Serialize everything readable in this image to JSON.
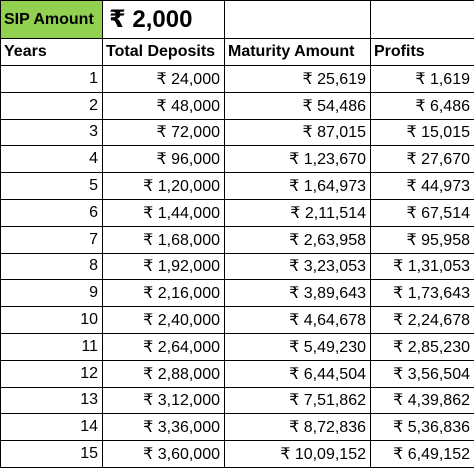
{
  "sip": {
    "label": "SIP Amount",
    "value": "₹ 2,000"
  },
  "headers": [
    "Years",
    "Total Deposits",
    "Maturity Amount",
    "Profits"
  ],
  "rows": [
    [
      "1",
      "₹ 24,000",
      "₹ 25,619",
      "₹ 1,619"
    ],
    [
      "2",
      "₹ 48,000",
      "₹ 54,486",
      "₹ 6,486"
    ],
    [
      "3",
      "₹ 72,000",
      "₹ 87,015",
      "₹ 15,015"
    ],
    [
      "4",
      "₹ 96,000",
      "₹ 1,23,670",
      "₹ 27,670"
    ],
    [
      "5",
      "₹ 1,20,000",
      "₹ 1,64,973",
      "₹ 44,973"
    ],
    [
      "6",
      "₹ 1,44,000",
      "₹ 2,11,514",
      "₹ 67,514"
    ],
    [
      "7",
      "₹ 1,68,000",
      "₹ 2,63,958",
      "₹ 95,958"
    ],
    [
      "8",
      "₹ 1,92,000",
      "₹ 3,23,053",
      "₹ 1,31,053"
    ],
    [
      "9",
      "₹ 2,16,000",
      "₹ 3,89,643",
      "₹ 1,73,643"
    ],
    [
      "10",
      "₹ 2,40,000",
      "₹ 4,64,678",
      "₹ 2,24,678"
    ],
    [
      "11",
      "₹ 2,64,000",
      "₹ 5,49,230",
      "₹ 2,85,230"
    ],
    [
      "12",
      "₹ 2,88,000",
      "₹ 6,44,504",
      "₹ 3,56,504"
    ],
    [
      "13",
      "₹ 3,12,000",
      "₹ 7,51,862",
      "₹ 4,39,862"
    ],
    [
      "14",
      "₹ 3,36,000",
      "₹ 8,72,836",
      "₹ 5,36,836"
    ],
    [
      "15",
      "₹ 3,60,000",
      "₹ 10,09,152",
      "₹ 6,49,152"
    ]
  ],
  "colors": {
    "sip_label_bg": "#92d050"
  }
}
